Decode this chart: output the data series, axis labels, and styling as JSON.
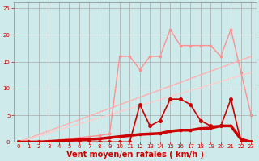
{
  "background_color": "#ceeaea",
  "grid_color": "#aaaaaa",
  "xlabel": "Vent moyen/en rafales ( km/h )",
  "xlim": [
    -0.5,
    23.5
  ],
  "ylim": [
    0,
    26
  ],
  "yticks": [
    0,
    5,
    10,
    15,
    20,
    25
  ],
  "xticks": [
    0,
    1,
    2,
    3,
    4,
    5,
    6,
    7,
    8,
    9,
    10,
    11,
    12,
    13,
    14,
    15,
    16,
    17,
    18,
    19,
    20,
    21,
    22,
    23
  ],
  "line_light_pink": {
    "x": [
      0,
      1,
      2,
      3,
      4,
      5,
      6,
      7,
      8,
      9,
      10,
      11,
      12,
      13,
      14,
      15,
      16,
      17,
      18,
      19,
      20,
      21,
      22,
      23
    ],
    "y": [
      0,
      0,
      0,
      0.2,
      0.4,
      0.6,
      0.8,
      1.0,
      1.2,
      1.5,
      16,
      16,
      13.5,
      16,
      16,
      21,
      18,
      18,
      18,
      18,
      16,
      21,
      13,
      5
    ],
    "color": "#ff9090",
    "lw": 1.0,
    "marker": "s",
    "ms": 2.0
  },
  "line_diag_upper": {
    "x": [
      0,
      23
    ],
    "y": [
      0,
      16
    ],
    "color": "#ffb0b0",
    "lw": 1.0
  },
  "line_diag_lower": {
    "x": [
      0,
      23
    ],
    "y": [
      0,
      13
    ],
    "color": "#ffcccc",
    "lw": 1.0
  },
  "line_dark_red": {
    "x": [
      0,
      1,
      2,
      3,
      4,
      5,
      6,
      7,
      8,
      9,
      10,
      11,
      12,
      13,
      14,
      15,
      16,
      17,
      18,
      19,
      20,
      21,
      22,
      23
    ],
    "y": [
      0,
      0,
      0,
      0,
      0,
      0,
      0,
      0,
      0,
      0,
      0,
      0,
      7,
      3,
      4,
      8,
      8,
      7,
      4,
      3,
      3,
      8,
      0,
      0
    ],
    "color": "#cc0000",
    "lw": 1.2,
    "marker": "o",
    "ms": 2.5
  },
  "line_base_red": {
    "x": [
      0,
      1,
      2,
      3,
      4,
      5,
      6,
      7,
      8,
      9,
      10,
      11,
      12,
      13,
      14,
      15,
      16,
      17,
      18,
      19,
      20,
      21,
      22,
      23
    ],
    "y": [
      0,
      0,
      0,
      0.1,
      0.2,
      0.3,
      0.4,
      0.5,
      0.6,
      0.8,
      1.0,
      1.2,
      1.4,
      1.5,
      1.6,
      2.0,
      2.2,
      2.2,
      2.5,
      2.6,
      3.0,
      3.0,
      0.5,
      0
    ],
    "color": "#cc0000",
    "lw": 2.5,
    "marker": "s",
    "ms": 1.8
  },
  "xlabel_fontsize": 7,
  "tick_fontsize": 5,
  "tick_color": "#cc0000",
  "xlabel_color": "#cc0000"
}
